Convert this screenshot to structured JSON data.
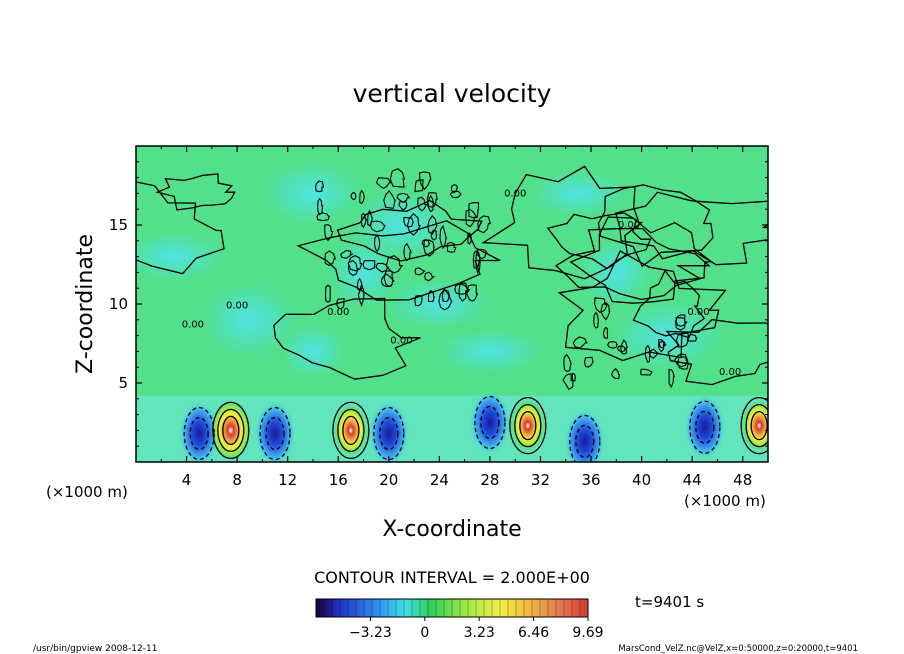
{
  "chart_data": {
    "type": "heatmap",
    "title": "vertical velocity",
    "xlabel": "X-coordinate",
    "ylabel": "Z-coordinate",
    "x_unit_left": "(×1000 m)",
    "x_unit_right": "(×1000 m)",
    "xlim": [
      0,
      50
    ],
    "ylim": [
      0,
      20
    ],
    "x_ticks": [
      4,
      8,
      12,
      16,
      20,
      24,
      28,
      32,
      36,
      40,
      44,
      48
    ],
    "y_ticks": [
      5,
      10,
      15
    ],
    "contour_interval_text": "CONTOUR INTERVAL = 2.000E+00",
    "time_text": "t=9401 s",
    "colorbar_ticks": [
      "-3.23",
      "0",
      "3.23",
      "6.46",
      "9.69"
    ],
    "colorbar_range": [
      -6.46,
      9.69
    ],
    "contour_label": "0.00",
    "updraft_cores": [
      {
        "x": 7.5,
        "z": 2.0,
        "value": 9.69
      },
      {
        "x": 17.0,
        "z": 2.0,
        "value": 6.46
      },
      {
        "x": 31.0,
        "z": 2.3,
        "value": 6.46
      },
      {
        "x": 49.3,
        "z": 2.3,
        "value": 5.0
      }
    ],
    "downdraft_cores": [
      {
        "x": 5.0,
        "z": 1.8,
        "value": -4.5
      },
      {
        "x": 11.0,
        "z": 1.8,
        "value": -3.5
      },
      {
        "x": 20.0,
        "z": 1.8,
        "value": -3.2
      },
      {
        "x": 28.0,
        "z": 2.5,
        "value": -3.0
      },
      {
        "x": 35.5,
        "z": 1.3,
        "value": -6.0
      },
      {
        "x": 45.0,
        "z": 2.2,
        "value": -3.2
      }
    ],
    "footer_left": "/usr/bin/gpview   2008-12-11",
    "footer_right": "MarsCond_VelZ.nc@VelZ,x=0:50000,z=0:20000,t=9401"
  }
}
